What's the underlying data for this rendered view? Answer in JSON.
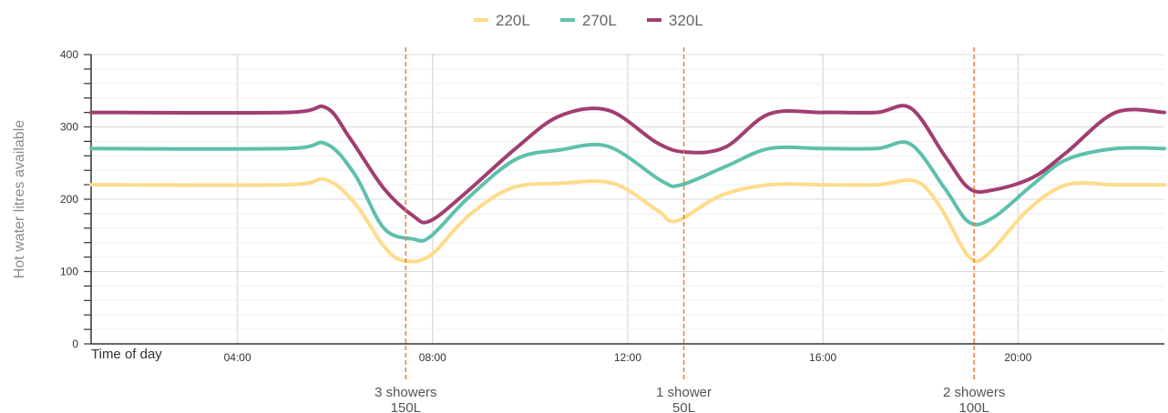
{
  "chart_data": {
    "type": "line",
    "ylabel": "Hot water litres available",
    "xlabel": "Time of day",
    "ylim": [
      0,
      400
    ],
    "yticks": [
      0,
      100,
      200,
      300,
      400
    ],
    "xlim": [
      1.0,
      23.0
    ],
    "xticks": [
      {
        "x": 4,
        "label": "04:00"
      },
      {
        "x": 8,
        "label": "08:00"
      },
      {
        "x": 12,
        "label": "12:00"
      },
      {
        "x": 16,
        "label": "16:00"
      },
      {
        "x": 20,
        "label": "20:00"
      }
    ],
    "grid": true,
    "legend_position": "top-center",
    "series": [
      {
        "name": "220L",
        "color": "#FFDB8A",
        "x": [
          1,
          5.0,
          5.8,
          6.4,
          7.0,
          7.4,
          7.95,
          8.7,
          9.6,
          10.6,
          11.7,
          12.6,
          13.0,
          13.9,
          14.9,
          16.0,
          17.1,
          17.9,
          18.4,
          19.0,
          19.4,
          20.2,
          21.0,
          22.0,
          23.0
        ],
        "y": [
          220,
          220,
          227,
          195,
          135,
          115,
          122,
          175,
          215,
          222,
          222,
          185,
          170,
          205,
          220,
          220,
          220,
          225,
          190,
          120,
          125,
          185,
          220,
          220,
          220
        ]
      },
      {
        "name": "270L",
        "color": "#5EC0AC",
        "x": [
          1,
          5.0,
          5.8,
          6.4,
          7.0,
          7.6,
          7.95,
          8.7,
          9.7,
          10.6,
          11.6,
          12.7,
          13.1,
          14.0,
          14.9,
          16.0,
          17.1,
          17.8,
          18.5,
          19.0,
          19.5,
          20.3,
          21.0,
          22.0,
          23.0
        ],
        "y": [
          270,
          270,
          277,
          235,
          160,
          145,
          148,
          200,
          255,
          268,
          273,
          225,
          220,
          245,
          270,
          270,
          270,
          276,
          215,
          168,
          175,
          220,
          255,
          270,
          270
        ]
      },
      {
        "name": "320L",
        "color": "#A13E71",
        "x": [
          1,
          5.0,
          5.8,
          6.3,
          7.0,
          7.6,
          7.95,
          8.7,
          9.7,
          10.6,
          11.6,
          12.6,
          13.2,
          14.0,
          14.9,
          16.0,
          17.1,
          17.8,
          18.5,
          19.0,
          19.5,
          20.3,
          21.0,
          22.0,
          23.0
        ],
        "y": [
          320,
          320,
          327,
          285,
          215,
          177,
          170,
          210,
          270,
          315,
          323,
          278,
          265,
          272,
          318,
          320,
          320,
          326,
          260,
          215,
          213,
          230,
          265,
          320,
          320
        ]
      }
    ],
    "annotations": [
      {
        "x": 7.45,
        "line1": "3 showers",
        "line2": "150L"
      },
      {
        "x": 13.15,
        "line1": "1 shower",
        "line2": "50L"
      },
      {
        "x": 19.1,
        "line1": "2 showers",
        "line2": "100L"
      }
    ],
    "annotation_color": "#F07A3C",
    "grid_color": "#DDDDDD"
  }
}
